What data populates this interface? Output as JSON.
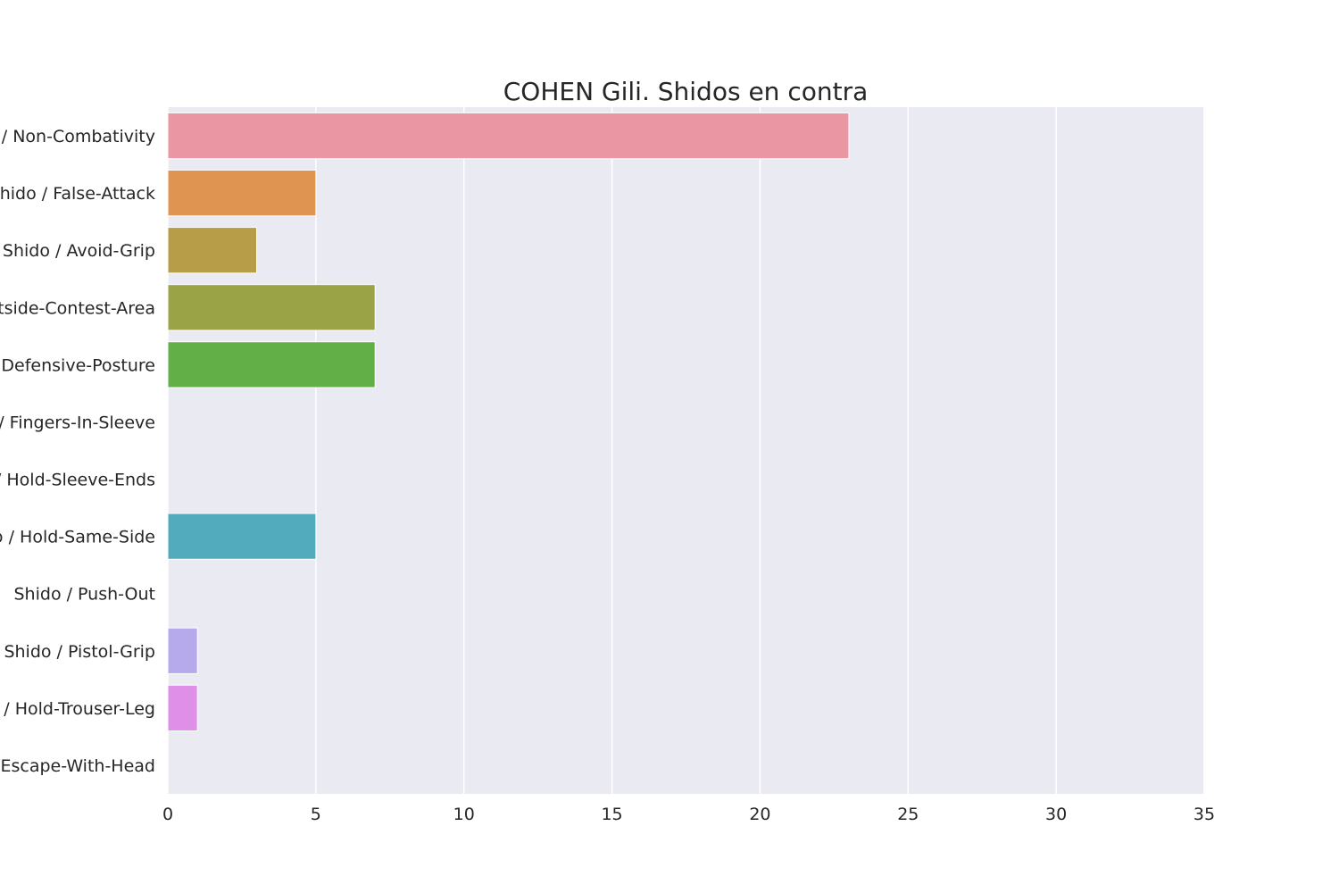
{
  "chart_data": {
    "type": "bar",
    "orientation": "horizontal",
    "title": "COHEN Gili. Shidos en contra",
    "xlabel": "",
    "ylabel": "",
    "xlim": [
      0,
      35
    ],
    "xticks": [
      0,
      5,
      10,
      15,
      20,
      25,
      30,
      35
    ],
    "grid": true,
    "legend": "none",
    "categories": [
      "Shido / Non-Combativity",
      "Shido / False-Attack",
      "Shido / Avoid-Grip",
      "Shido / Outside-Contest-Area",
      "Shido / Defensive-Posture",
      "Shido / Fingers-In-Sleeve",
      "Shido / Hold-Sleeve-Ends",
      "Shido / Hold-Same-Side",
      "Shido / Push-Out",
      "Shido / Pistol-Grip",
      "Shido / Hold-Trouser-Leg",
      "Shido / Escape-With-Head"
    ],
    "values": [
      23,
      5,
      3,
      7,
      7,
      0,
      0,
      5,
      0,
      1,
      1,
      0
    ],
    "colors": [
      "#ea96a3",
      "#e09452",
      "#b89d48",
      "#9aa447",
      "#62ae47",
      "#4fb184",
      "#53b09f",
      "#51abbc",
      "#5da6df",
      "#b6a9ec",
      "#e08fe8",
      "#ea93c5"
    ],
    "background_color": "#eaeaf2",
    "grid_color": "#ffffff"
  }
}
